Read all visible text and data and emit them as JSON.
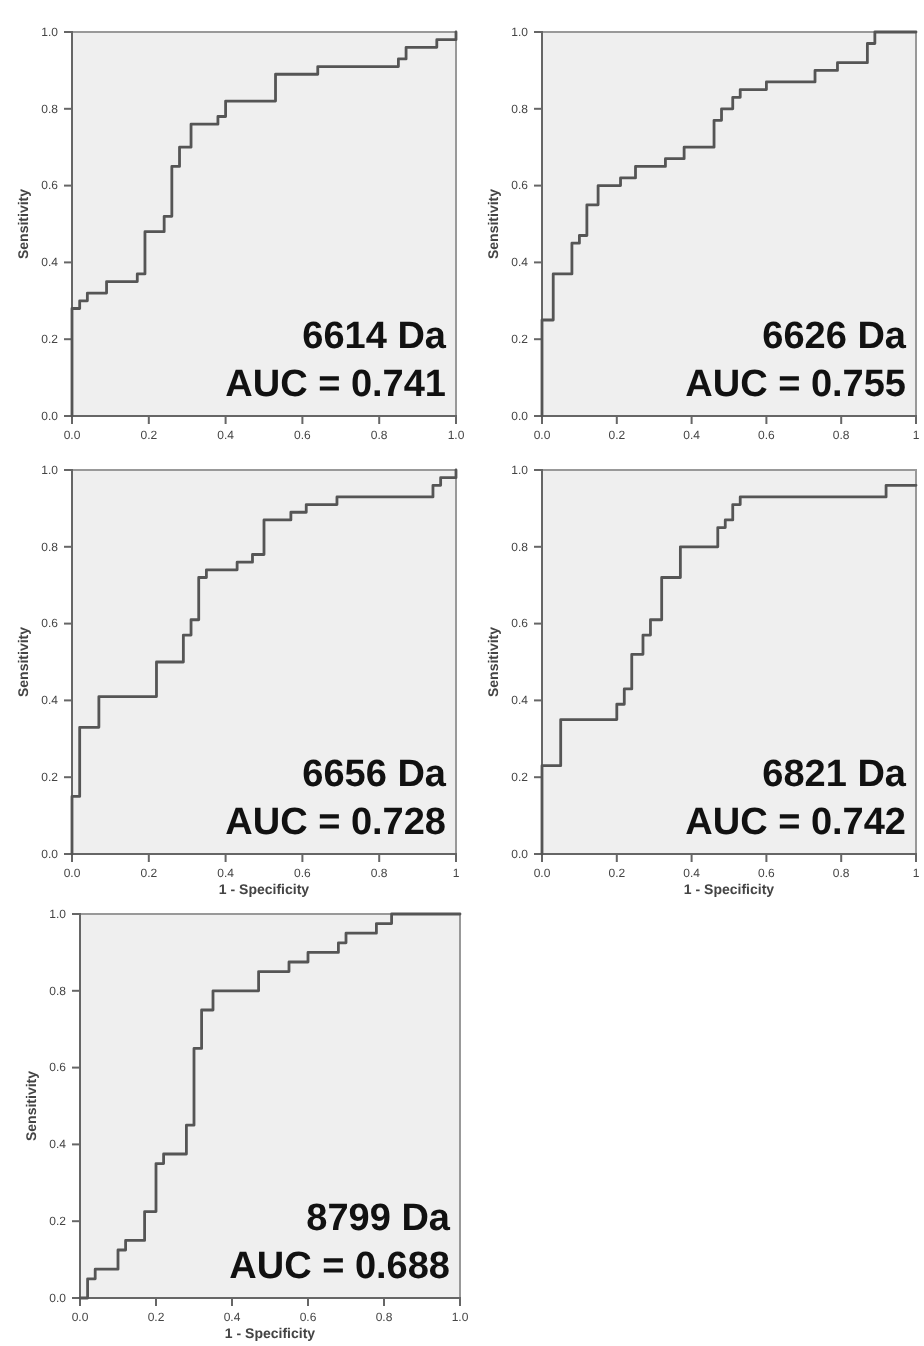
{
  "chart_data": [
    {
      "type": "line",
      "ylabel": "Sensitivity",
      "xlim": [
        0,
        1
      ],
      "ylim": [
        0,
        1
      ],
      "xticks": [
        {
          "value": 0,
          "label": "0.0"
        },
        {
          "value": 0.2,
          "label": "0.2"
        },
        {
          "value": 0.4,
          "label": "0.4"
        },
        {
          "value": 0.6,
          "label": "0.6"
        },
        {
          "value": 0.8,
          "label": "0.8"
        },
        {
          "value": 1,
          "label": "1.0"
        }
      ],
      "yticks": [
        {
          "value": 0,
          "label": "0.0"
        },
        {
          "value": 0.2,
          "label": "0.2"
        },
        {
          "value": 0.4,
          "label": "0.4"
        },
        {
          "value": 0.6,
          "label": "0.6"
        },
        {
          "value": 0.8,
          "label": "0.8"
        },
        {
          "value": 1,
          "label": "1.0"
        }
      ],
      "grid": false,
      "annotations": [
        "6614 Da",
        "AUC = 0.741"
      ],
      "series": [
        {
          "color": "#555555",
          "x": [
            0,
            0,
            0.02,
            0.02,
            0.04,
            0.04,
            0.09,
            0.09,
            0.17,
            0.17,
            0.19,
            0.19,
            0.24,
            0.24,
            0.26,
            0.26,
            0.28,
            0.28,
            0.31,
            0.31,
            0.38,
            0.38,
            0.4,
            0.4,
            0.53,
            0.53,
            0.64,
            0.64,
            0.85,
            0.85,
            0.87,
            0.87,
            0.95,
            0.95,
            1.0,
            1.0
          ],
          "values": [
            0,
            0.28,
            0.28,
            0.3,
            0.3,
            0.32,
            0.32,
            0.35,
            0.35,
            0.37,
            0.37,
            0.48,
            0.48,
            0.52,
            0.52,
            0.65,
            0.65,
            0.7,
            0.7,
            0.76,
            0.76,
            0.78,
            0.78,
            0.82,
            0.82,
            0.89,
            0.89,
            0.91,
            0.91,
            0.93,
            0.93,
            0.96,
            0.96,
            0.98,
            0.98,
            1.0
          ]
        }
      ]
    },
    {
      "type": "line",
      "ylabel": "Sensitivity",
      "xlim": [
        0,
        1
      ],
      "ylim": [
        0,
        1
      ],
      "xticks": [
        {
          "value": 0,
          "label": "0.0"
        },
        {
          "value": 0.2,
          "label": "0.2"
        },
        {
          "value": 0.4,
          "label": "0.4"
        },
        {
          "value": 0.6,
          "label": "0.6"
        },
        {
          "value": 0.8,
          "label": "0.8"
        },
        {
          "value": 1,
          "label": "1"
        }
      ],
      "yticks": [
        {
          "value": 0,
          "label": "0.0"
        },
        {
          "value": 0.2,
          "label": "0.2"
        },
        {
          "value": 0.4,
          "label": "0.4"
        },
        {
          "value": 0.6,
          "label": "0.6"
        },
        {
          "value": 0.8,
          "label": "0.8"
        },
        {
          "value": 1,
          "label": "1.0"
        }
      ],
      "grid": false,
      "annotations": [
        "6626 Da",
        "AUC = 0.755"
      ],
      "series": [
        {
          "color": "#555555",
          "x": [
            0,
            0,
            0.03,
            0.03,
            0.08,
            0.08,
            0.1,
            0.1,
            0.12,
            0.12,
            0.15,
            0.15,
            0.21,
            0.21,
            0.25,
            0.25,
            0.33,
            0.33,
            0.38,
            0.38,
            0.46,
            0.46,
            0.48,
            0.48,
            0.51,
            0.51,
            0.53,
            0.53,
            0.6,
            0.6,
            0.73,
            0.73,
            0.79,
            0.79,
            0.87,
            0.87,
            0.89,
            0.89,
            1.0
          ],
          "values": [
            0,
            0.25,
            0.25,
            0.37,
            0.37,
            0.45,
            0.45,
            0.47,
            0.47,
            0.55,
            0.55,
            0.6,
            0.6,
            0.62,
            0.62,
            0.65,
            0.65,
            0.67,
            0.67,
            0.7,
            0.7,
            0.77,
            0.77,
            0.8,
            0.8,
            0.83,
            0.83,
            0.85,
            0.85,
            0.87,
            0.87,
            0.9,
            0.9,
            0.92,
            0.92,
            0.97,
            0.97,
            1.0,
            1.0
          ]
        }
      ]
    },
    {
      "type": "line",
      "ylabel": "Sensitivity",
      "xlabel": "1 - Specificity",
      "xlim": [
        0,
        1
      ],
      "ylim": [
        0,
        1
      ],
      "xticks": [
        {
          "value": 0,
          "label": "0.0"
        },
        {
          "value": 0.2,
          "label": "0.2"
        },
        {
          "value": 0.4,
          "label": "0.4"
        },
        {
          "value": 0.6,
          "label": "0.6"
        },
        {
          "value": 0.8,
          "label": "0.8"
        },
        {
          "value": 1,
          "label": "1"
        }
      ],
      "yticks": [
        {
          "value": 0,
          "label": "0.0"
        },
        {
          "value": 0.2,
          "label": "0.2"
        },
        {
          "value": 0.4,
          "label": "0.4"
        },
        {
          "value": 0.6,
          "label": "0.6"
        },
        {
          "value": 0.8,
          "label": "0.8"
        },
        {
          "value": 1,
          "label": "1.0"
        }
      ],
      "grid": false,
      "annotations": [
        "6656 Da",
        "AUC = 0.728"
      ],
      "series": [
        {
          "color": "#555555",
          "x": [
            0,
            0,
            0.02,
            0.02,
            0.07,
            0.07,
            0.22,
            0.22,
            0.29,
            0.29,
            0.31,
            0.31,
            0.33,
            0.33,
            0.35,
            0.35,
            0.43,
            0.43,
            0.47,
            0.47,
            0.5,
            0.5,
            0.57,
            0.57,
            0.61,
            0.61,
            0.69,
            0.69,
            0.94,
            0.94,
            0.96,
            0.96,
            1.0,
            1.0
          ],
          "values": [
            0,
            0.15,
            0.15,
            0.33,
            0.33,
            0.41,
            0.41,
            0.5,
            0.5,
            0.57,
            0.57,
            0.61,
            0.61,
            0.72,
            0.72,
            0.74,
            0.74,
            0.76,
            0.76,
            0.78,
            0.78,
            0.87,
            0.87,
            0.89,
            0.89,
            0.91,
            0.91,
            0.93,
            0.93,
            0.96,
            0.96,
            0.98,
            0.98,
            1.0
          ]
        }
      ]
    },
    {
      "type": "line",
      "ylabel": "Sensitivity",
      "xlabel": "1 - Specificity",
      "xlim": [
        0,
        1
      ],
      "ylim": [
        0,
        1
      ],
      "xticks": [
        {
          "value": 0,
          "label": "0.0"
        },
        {
          "value": 0.2,
          "label": "0.2"
        },
        {
          "value": 0.4,
          "label": "0.4"
        },
        {
          "value": 0.6,
          "label": "0.6"
        },
        {
          "value": 0.8,
          "label": "0.8"
        },
        {
          "value": 1,
          "label": "1"
        }
      ],
      "yticks": [
        {
          "value": 0,
          "label": "0.0"
        },
        {
          "value": 0.2,
          "label": "0.2"
        },
        {
          "value": 0.4,
          "label": "0.4"
        },
        {
          "value": 0.6,
          "label": "0.6"
        },
        {
          "value": 0.8,
          "label": "0.8"
        },
        {
          "value": 1,
          "label": "1.0"
        }
      ],
      "grid": false,
      "annotations": [
        "6821 Da",
        "AUC = 0.742"
      ],
      "series": [
        {
          "color": "#555555",
          "x": [
            0,
            0,
            0.05,
            0.05,
            0.2,
            0.2,
            0.22,
            0.22,
            0.24,
            0.24,
            0.27,
            0.27,
            0.29,
            0.29,
            0.32,
            0.32,
            0.37,
            0.37,
            0.47,
            0.47,
            0.49,
            0.49,
            0.51,
            0.51,
            0.53,
            0.53,
            0.92,
            0.92,
            1.0
          ],
          "values": [
            0,
            0.23,
            0.23,
            0.35,
            0.35,
            0.39,
            0.39,
            0.43,
            0.43,
            0.52,
            0.52,
            0.57,
            0.57,
            0.61,
            0.61,
            0.72,
            0.72,
            0.8,
            0.8,
            0.85,
            0.85,
            0.87,
            0.87,
            0.91,
            0.91,
            0.93,
            0.93,
            0.96,
            0.96
          ]
        }
      ]
    },
    {
      "type": "line",
      "ylabel": "Sensitivity",
      "xlabel": "1 - Specificity",
      "xlim": [
        0,
        1
      ],
      "ylim": [
        0,
        1
      ],
      "xticks": [
        {
          "value": 0,
          "label": "0.0"
        },
        {
          "value": 0.2,
          "label": "0.2"
        },
        {
          "value": 0.4,
          "label": "0.4"
        },
        {
          "value": 0.6,
          "label": "0.6"
        },
        {
          "value": 0.8,
          "label": "0.8"
        },
        {
          "value": 1,
          "label": "1.0"
        }
      ],
      "yticks": [
        {
          "value": 0,
          "label": "0.0"
        },
        {
          "value": 0.2,
          "label": "0.2"
        },
        {
          "value": 0.4,
          "label": "0.4"
        },
        {
          "value": 0.6,
          "label": "0.6"
        },
        {
          "value": 0.8,
          "label": "0.8"
        },
        {
          "value": 1,
          "label": "1.0"
        }
      ],
      "grid": false,
      "annotations": [
        "8799 Da",
        "AUC = 0.688"
      ],
      "series": [
        {
          "color": "#555555",
          "x": [
            0,
            0.02,
            0.02,
            0.04,
            0.04,
            0.1,
            0.1,
            0.12,
            0.12,
            0.17,
            0.17,
            0.2,
            0.2,
            0.22,
            0.22,
            0.28,
            0.28,
            0.3,
            0.3,
            0.32,
            0.32,
            0.35,
            0.35,
            0.47,
            0.47,
            0.55,
            0.55,
            0.6,
            0.6,
            0.68,
            0.68,
            0.7,
            0.7,
            0.78,
            0.78,
            0.82,
            0.82,
            1.0
          ],
          "values": [
            0,
            0,
            0.05,
            0.05,
            0.075,
            0.075,
            0.125,
            0.125,
            0.15,
            0.15,
            0.225,
            0.225,
            0.35,
            0.35,
            0.375,
            0.375,
            0.45,
            0.45,
            0.65,
            0.65,
            0.75,
            0.75,
            0.8,
            0.8,
            0.85,
            0.85,
            0.875,
            0.875,
            0.9,
            0.9,
            0.925,
            0.925,
            0.95,
            0.95,
            0.975,
            0.975,
            1.0,
            1.0
          ]
        }
      ]
    }
  ]
}
